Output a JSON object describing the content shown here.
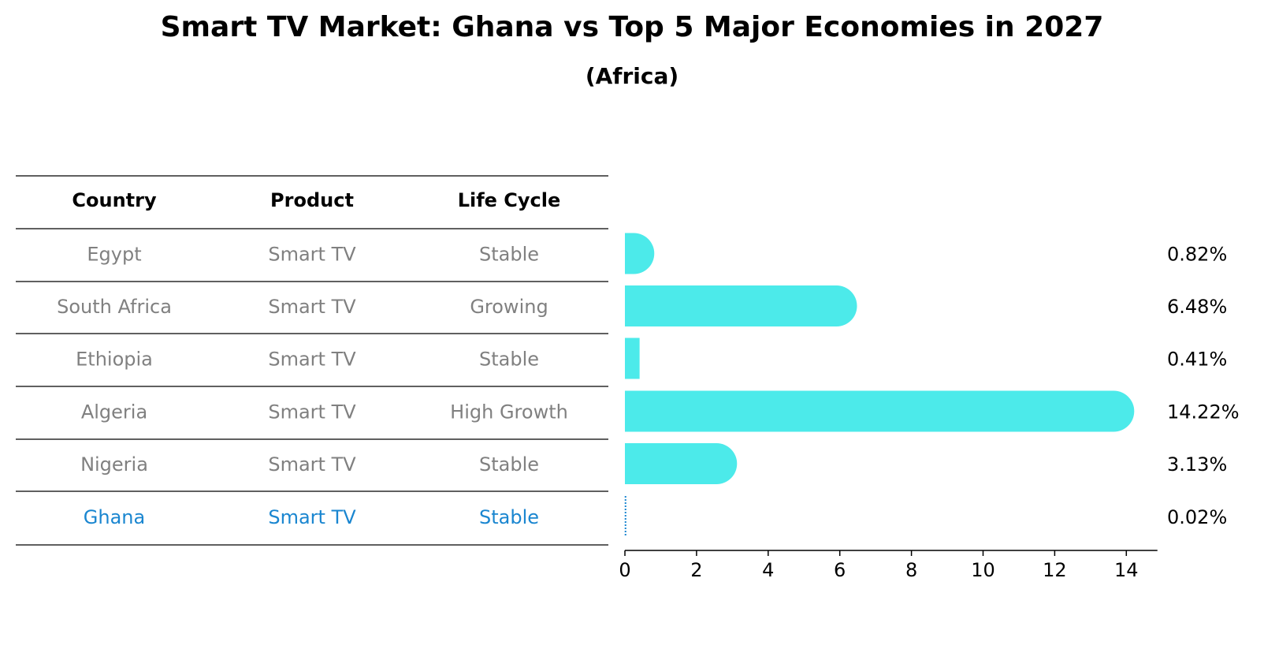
{
  "chart_data": {
    "type": "bar",
    "orientation": "horizontal",
    "title": "Smart TV Market: Ghana vs Top 5 Major Economies in 2027",
    "subtitle": "(Africa)",
    "table": {
      "headers": [
        "Country",
        "Product",
        "Life Cycle"
      ],
      "rows": [
        {
          "country": "Egypt",
          "product": "Smart TV",
          "life_cycle": "Stable"
        },
        {
          "country": "South Africa",
          "product": "Smart TV",
          "life_cycle": "Growing"
        },
        {
          "country": "Ethiopia",
          "product": "Smart TV",
          "life_cycle": "Stable"
        },
        {
          "country": "Algeria",
          "product": "Smart TV",
          "life_cycle": "High Growth"
        },
        {
          "country": "Nigeria",
          "product": "Smart TV",
          "life_cycle": "Stable"
        },
        {
          "country": "Ghana",
          "product": "Smart TV",
          "life_cycle": "Stable"
        }
      ]
    },
    "categories": [
      "Egypt",
      "South Africa",
      "Ethiopia",
      "Algeria",
      "Nigeria",
      "Ghana"
    ],
    "values": [
      0.82,
      6.48,
      0.41,
      14.22,
      3.13,
      0.02
    ],
    "value_labels": [
      "0.82%",
      "6.48%",
      "0.41%",
      "14.22%",
      "3.13%",
      "0.02%"
    ],
    "highlight": "Ghana",
    "xlim": [
      0,
      15
    ],
    "xticks": [
      0,
      2,
      4,
      6,
      8,
      10,
      12,
      14
    ],
    "xtick_labels": [
      "0",
      "2",
      "4",
      "6",
      "8",
      "10",
      "12",
      "14"
    ],
    "xlabel": "",
    "ylabel": "",
    "grid": false,
    "colors": {
      "bar": "#4ceaea",
      "highlight": "#1a86d0",
      "muted_text": "#808080",
      "text": "#000000",
      "rule": "#000000"
    }
  }
}
